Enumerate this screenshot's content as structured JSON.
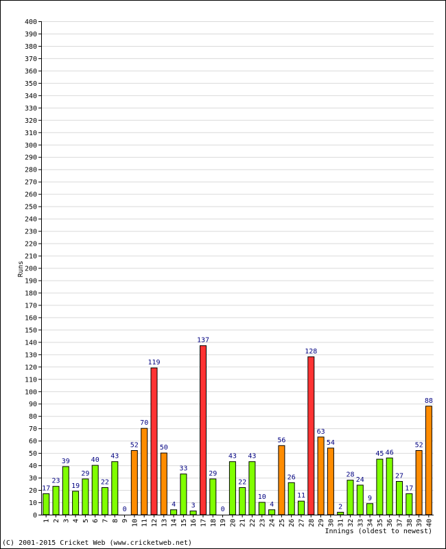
{
  "copyright": "(C) 2001-2015 Cricket Web (www.cricketweb.net)",
  "colors": {
    "under_50": "#80ff00",
    "fifty_plus": "#ff8c00",
    "hundred_plus": "#ff3333",
    "label": "#000080",
    "grid": "#d9d9d9"
  },
  "chart_data": {
    "type": "bar",
    "title": "",
    "xlabel": "Innings (oldest to newest)",
    "ylabel": "Runs",
    "ylim": [
      0,
      400
    ],
    "ytick_step": 10,
    "grid": true,
    "categories": [
      "1",
      "2",
      "3",
      "4",
      "5",
      "6",
      "7",
      "8",
      "9",
      "10",
      "11",
      "12",
      "13",
      "14",
      "15",
      "16",
      "17",
      "18",
      "19",
      "20",
      "21",
      "22",
      "23",
      "24",
      "25",
      "26",
      "27",
      "28",
      "29",
      "30",
      "31",
      "32",
      "33",
      "34",
      "35",
      "36",
      "37",
      "38",
      "39",
      "40"
    ],
    "values": [
      17,
      23,
      39,
      19,
      29,
      40,
      22,
      43,
      0,
      52,
      70,
      119,
      50,
      4,
      33,
      3,
      137,
      29,
      0,
      43,
      22,
      43,
      10,
      4,
      56,
      26,
      11,
      128,
      63,
      54,
      2,
      28,
      24,
      9,
      45,
      46,
      27,
      17,
      52,
      88
    ]
  }
}
